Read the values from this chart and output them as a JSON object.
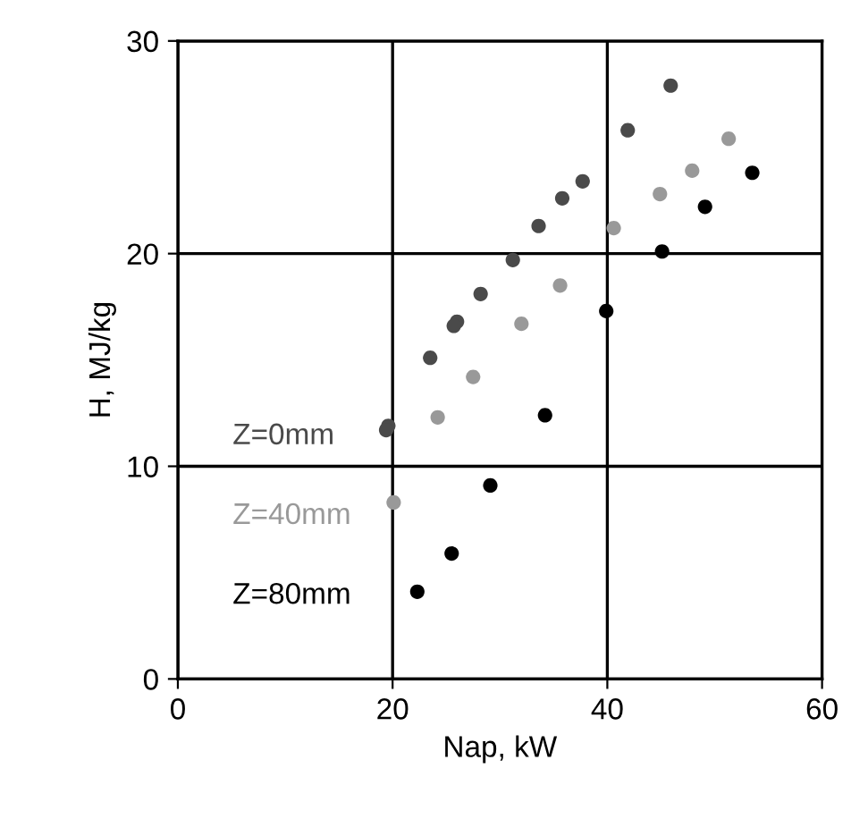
{
  "chart_data": {
    "type": "scatter",
    "xlabel": "Nap, kW",
    "ylabel": "H, MJ/kg",
    "xlim": [
      0,
      60
    ],
    "ylim": [
      0,
      30
    ],
    "xticks": [
      0,
      20,
      40,
      60
    ],
    "yticks": [
      0,
      10,
      20,
      30
    ],
    "grid": true,
    "marker": "circle",
    "legend": false,
    "series": [
      {
        "name": "Z=0mm",
        "color": "#4a4a4a",
        "x": [
          45.9,
          41.9,
          37.7,
          35.8,
          33.6,
          31.2,
          28.2,
          26.0,
          25.7,
          23.5,
          19.6,
          19.4
        ],
        "values": [
          27.9,
          25.8,
          23.4,
          22.6,
          21.3,
          19.7,
          18.1,
          16.8,
          16.6,
          15.1,
          11.9,
          11.7
        ]
      },
      {
        "name": "Z=40mm",
        "color": "#999999",
        "x": [
          51.3,
          47.9,
          44.9,
          40.6,
          35.6,
          32.0,
          27.5,
          24.2,
          20.1
        ],
        "values": [
          25.4,
          23.9,
          22.8,
          21.2,
          18.5,
          16.7,
          14.2,
          12.3,
          8.3
        ]
      },
      {
        "name": "Z=80mm",
        "color": "#000000",
        "x": [
          53.5,
          49.1,
          45.1,
          39.9,
          34.2,
          29.1,
          25.5,
          22.3
        ],
        "values": [
          23.8,
          22.2,
          20.1,
          17.3,
          12.4,
          9.1,
          5.9,
          4.1
        ]
      }
    ]
  }
}
